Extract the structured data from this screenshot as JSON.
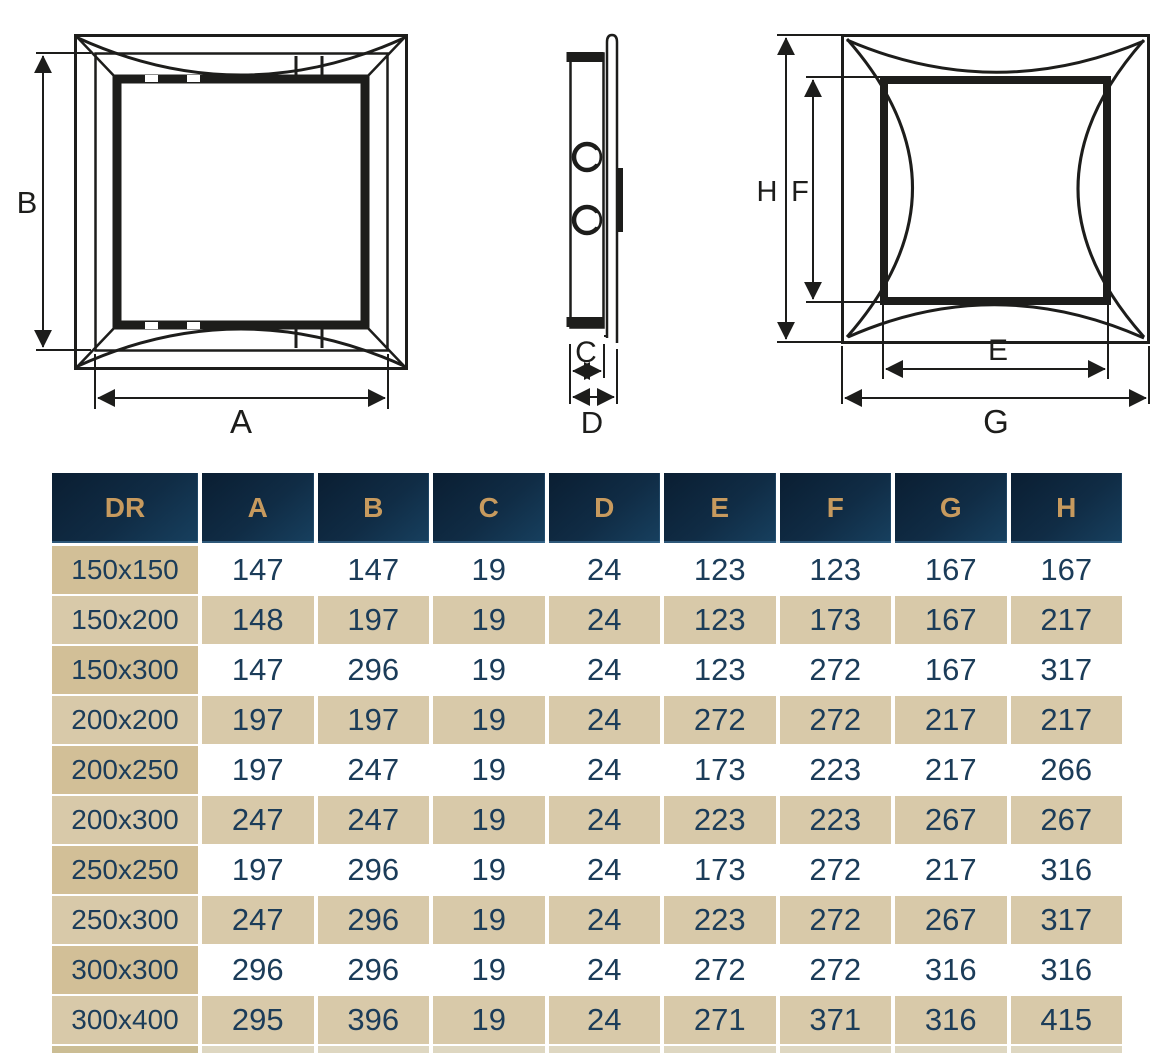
{
  "drawing": {
    "dims": {
      "a": "A",
      "b": "B",
      "c": "C",
      "d": "D",
      "e": "E",
      "f": "F",
      "g": "G",
      "h": "H"
    },
    "views": {
      "front": "front view with width A and height B",
      "side": "side profile with inner depth C and total depth D",
      "back": "back view with inner opening E x F and outer flange G x H"
    }
  },
  "table": {
    "columns": [
      "DR",
      "A",
      "B",
      "C",
      "D",
      "E",
      "F",
      "G",
      "H"
    ],
    "rows": [
      {
        "dr": "150x150",
        "values": [
          147,
          147,
          19,
          24,
          123,
          123,
          167,
          167
        ]
      },
      {
        "dr": "150x200",
        "values": [
          148,
          197,
          19,
          24,
          123,
          173,
          167,
          217
        ]
      },
      {
        "dr": "150x300",
        "values": [
          147,
          296,
          19,
          24,
          123,
          272,
          167,
          317
        ]
      },
      {
        "dr": "200x200",
        "values": [
          197,
          197,
          19,
          24,
          272,
          272,
          217,
          217
        ]
      },
      {
        "dr": "200x250",
        "values": [
          197,
          247,
          19,
          24,
          173,
          223,
          217,
          266
        ]
      },
      {
        "dr": "200x300",
        "values": [
          247,
          247,
          19,
          24,
          223,
          223,
          267,
          267
        ]
      },
      {
        "dr": "250x250",
        "values": [
          197,
          296,
          19,
          24,
          173,
          272,
          217,
          316
        ]
      },
      {
        "dr": "250x300",
        "values": [
          247,
          296,
          19,
          24,
          223,
          272,
          267,
          317
        ]
      },
      {
        "dr": "300x300",
        "values": [
          296,
          296,
          19,
          24,
          272,
          272,
          316,
          316
        ]
      },
      {
        "dr": "300x400",
        "values": [
          295,
          396,
          19,
          24,
          271,
          371,
          316,
          415
        ]
      }
    ]
  },
  "colors": {
    "header_bg": "#102c45",
    "header_text": "#c79a5e",
    "row_tan": "#d8c9a9",
    "first_col_tan": "#d2bf97",
    "cell_text": "#1b3c59",
    "line": "#1d1d1b"
  }
}
